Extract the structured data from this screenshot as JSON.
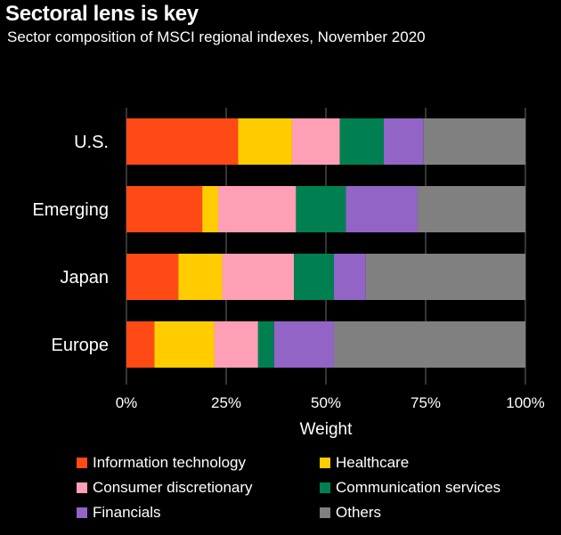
{
  "header": {
    "title": "Sectoral lens is key",
    "subtitle": "Sector composition  of MSCI regional indexes, November 2020"
  },
  "chart_data": {
    "type": "bar",
    "orientation": "horizontal",
    "stacked": true,
    "categories": [
      "U.S.",
      "Emerging",
      "Japan",
      "Europe"
    ],
    "series": [
      {
        "name": "Information technology",
        "color": "#ff4a16",
        "values": [
          28,
          19,
          13,
          7
        ]
      },
      {
        "name": "Healthcare",
        "color": "#ffcc00",
        "values": [
          13.5,
          4,
          11,
          15
        ]
      },
      {
        "name": "Consumer discretionary",
        "color": "#ff9fb5",
        "values": [
          12,
          19.5,
          18,
          11
        ]
      },
      {
        "name": "Communication services",
        "color": "#008051",
        "values": [
          11,
          12.5,
          10,
          4
        ]
      },
      {
        "name": "Financials",
        "color": "#9164c6",
        "values": [
          10,
          18,
          8,
          15
        ]
      },
      {
        "name": "Others",
        "color": "#808080",
        "values": [
          25.5,
          27,
          40,
          48
        ]
      }
    ],
    "xlabel": "Weight",
    "ylabel": "",
    "xlim": [
      0,
      100
    ],
    "x_ticks": [
      "0%",
      "25%",
      "50%",
      "75%",
      "100%"
    ],
    "grid": true,
    "legend_position": "bottom"
  }
}
